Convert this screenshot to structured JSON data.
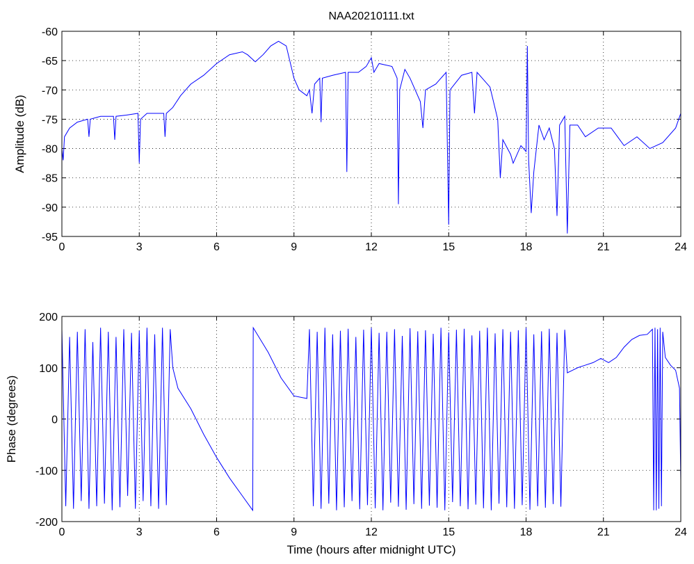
{
  "chart_data": [
    {
      "type": "line",
      "title": "NAA20210111.txt",
      "ylabel": "Amplitude (dB)",
      "color": "#0000ff",
      "grid": true,
      "xlim": [
        0,
        24
      ],
      "xticks": [
        0,
        3,
        6,
        9,
        12,
        15,
        18,
        21,
        24
      ],
      "ylim": [
        -95,
        -60
      ],
      "yticks": [
        -95,
        -90,
        -85,
        -80,
        -75,
        -70,
        -65,
        -60
      ],
      "x": [
        0,
        0.05,
        0.1,
        0.3,
        0.6,
        1,
        1.05,
        1.1,
        1.5,
        2,
        2.05,
        2.1,
        2.5,
        2.95,
        3.0,
        3.05,
        3.3,
        3.6,
        3.95,
        4.0,
        4.05,
        4.3,
        4.6,
        5,
        5.5,
        6,
        6.5,
        7,
        7.2,
        7.5,
        7.8,
        8.1,
        8.4,
        8.7,
        9,
        9.2,
        9.5,
        9.6,
        9.7,
        9.8,
        10,
        10.05,
        10.1,
        10.5,
        11,
        11.05,
        11.1,
        11.5,
        11.8,
        12,
        12.1,
        12.3,
        12.8,
        13,
        13.05,
        13.1,
        13.3,
        13.5,
        13.9,
        14,
        14.1,
        14.5,
        14.9,
        15,
        15.05,
        15.5,
        15.9,
        16,
        16.1,
        16.3,
        16.6,
        16.9,
        17,
        17.1,
        17.4,
        17.5,
        17.8,
        18,
        18.05,
        18.1,
        18.2,
        18.3,
        18.5,
        18.7,
        18.9,
        19.1,
        19.2,
        19.3,
        19.5,
        19.6,
        19.7,
        20,
        20.3,
        20.8,
        21.3,
        21.8,
        22.3,
        22.8,
        23.3,
        23.8,
        24
      ],
      "values": [
        -80,
        -82,
        -78,
        -76.5,
        -75.5,
        -75,
        -78,
        -75,
        -74.5,
        -74.5,
        -78.5,
        -74.5,
        -74.3,
        -74,
        -82.5,
        -75,
        -74,
        -74,
        -74,
        -78,
        -74,
        -73,
        -71,
        -69,
        -67.5,
        -65.5,
        -64,
        -63.5,
        -64,
        -65.2,
        -64,
        -62.5,
        -61.7,
        -62.5,
        -68,
        -70,
        -71,
        -70,
        -74,
        -69,
        -68,
        -75.5,
        -68,
        -67.5,
        -67,
        -84,
        -67,
        -67,
        -66,
        -64.5,
        -67,
        -65.5,
        -66,
        -68,
        -89.5,
        -70,
        -66.5,
        -68,
        -72,
        -76.5,
        -70,
        -69,
        -67,
        -93,
        -70,
        -67.5,
        -67,
        -74,
        -67,
        -68,
        -69.5,
        -75,
        -85,
        -78.5,
        -81,
        -82.5,
        -79.5,
        -80.5,
        -62.5,
        -82,
        -91,
        -84,
        -76,
        -78.5,
        -76.5,
        -80,
        -91.5,
        -76,
        -74.5,
        -94.5,
        -76,
        -76,
        -78,
        -76.5,
        -76.5,
        -79.5,
        -78,
        -80,
        -79,
        -76.5,
        -74
      ]
    },
    {
      "type": "line",
      "ylabel": "Phase (degrees)",
      "xlabel": "Time (hours after midnight UTC)",
      "color": "#0000ff",
      "grid": true,
      "xlim": [
        0,
        24
      ],
      "xticks": [
        0,
        3,
        6,
        9,
        12,
        15,
        18,
        21,
        24
      ],
      "ylim": [
        -200,
        200
      ],
      "yticks": [
        -200,
        -100,
        0,
        100,
        200
      ],
      "x": [
        0,
        0.15,
        0.3,
        0.45,
        0.6,
        0.75,
        0.9,
        1.05,
        1.2,
        1.35,
        1.5,
        1.65,
        1.8,
        1.95,
        2.1,
        2.25,
        2.4,
        2.55,
        2.7,
        2.85,
        3,
        3.15,
        3.3,
        3.45,
        3.6,
        3.75,
        3.9,
        4.05,
        4.2,
        4.3,
        4.5,
        5,
        5.5,
        6,
        6.5,
        7,
        7.4,
        7.42,
        8,
        8.5,
        9,
        9.5,
        9.6,
        9.75,
        9.9,
        10.05,
        10.2,
        10.35,
        10.5,
        10.65,
        10.8,
        10.95,
        11.1,
        11.25,
        11.4,
        11.55,
        11.7,
        11.85,
        12,
        12.15,
        12.3,
        12.45,
        12.6,
        12.75,
        12.9,
        13.05,
        13.2,
        13.35,
        13.5,
        13.65,
        13.8,
        13.95,
        14.1,
        14.25,
        14.4,
        14.55,
        14.7,
        14.85,
        15,
        15.15,
        15.3,
        15.45,
        15.6,
        15.75,
        15.9,
        16.05,
        16.2,
        16.35,
        16.5,
        16.65,
        16.8,
        16.95,
        17.1,
        17.25,
        17.4,
        17.55,
        17.7,
        17.85,
        18,
        18.15,
        18.3,
        18.45,
        18.6,
        18.75,
        18.9,
        19.05,
        19.2,
        19.35,
        19.5,
        19.6,
        19.8,
        20,
        20.3,
        20.6,
        20.9,
        21.2,
        21.5,
        21.8,
        22.1,
        22.4,
        22.7,
        22.9,
        22.95,
        23.0,
        23.05,
        23.1,
        23.15,
        23.2,
        23.25,
        23.3,
        23.4,
        23.6,
        23.8,
        23.95,
        24
      ],
      "values": [
        175,
        -170,
        160,
        -175,
        170,
        -160,
        175,
        -175,
        150,
        -170,
        178,
        -165,
        170,
        -178,
        160,
        -172,
        175,
        -150,
        168,
        -175,
        172,
        -160,
        178,
        -170,
        165,
        -175,
        178,
        -168,
        175,
        100,
        60,
        20,
        -30,
        -75,
        -115,
        -150,
        -178,
        178,
        130,
        80,
        45,
        40,
        175,
        -170,
        170,
        -175,
        178,
        -165,
        165,
        -178,
        172,
        -172,
        176,
        -160,
        160,
        -176,
        174,
        -168,
        178,
        -174,
        168,
        -178,
        170,
        -163,
        175,
        -171,
        162,
        -177,
        177,
        -166,
        171,
        -175,
        173,
        -169,
        166,
        -173,
        178,
        -178,
        169,
        -162,
        174,
        -170,
        176,
        -176,
        163,
        -167,
        172,
        -174,
        178,
        -178,
        167,
        -165,
        175,
        -172,
        170,
        -175,
        173,
        -168,
        178,
        -177,
        165,
        -170,
        171,
        -173,
        176,
        -166,
        168,
        -171,
        174,
        90,
        95,
        100,
        105,
        110,
        118,
        110,
        120,
        140,
        155,
        163,
        165,
        175,
        -178,
        178,
        -178,
        175,
        -175,
        178,
        -170,
        170,
        120,
        105,
        95,
        60,
        -120
      ]
    }
  ]
}
